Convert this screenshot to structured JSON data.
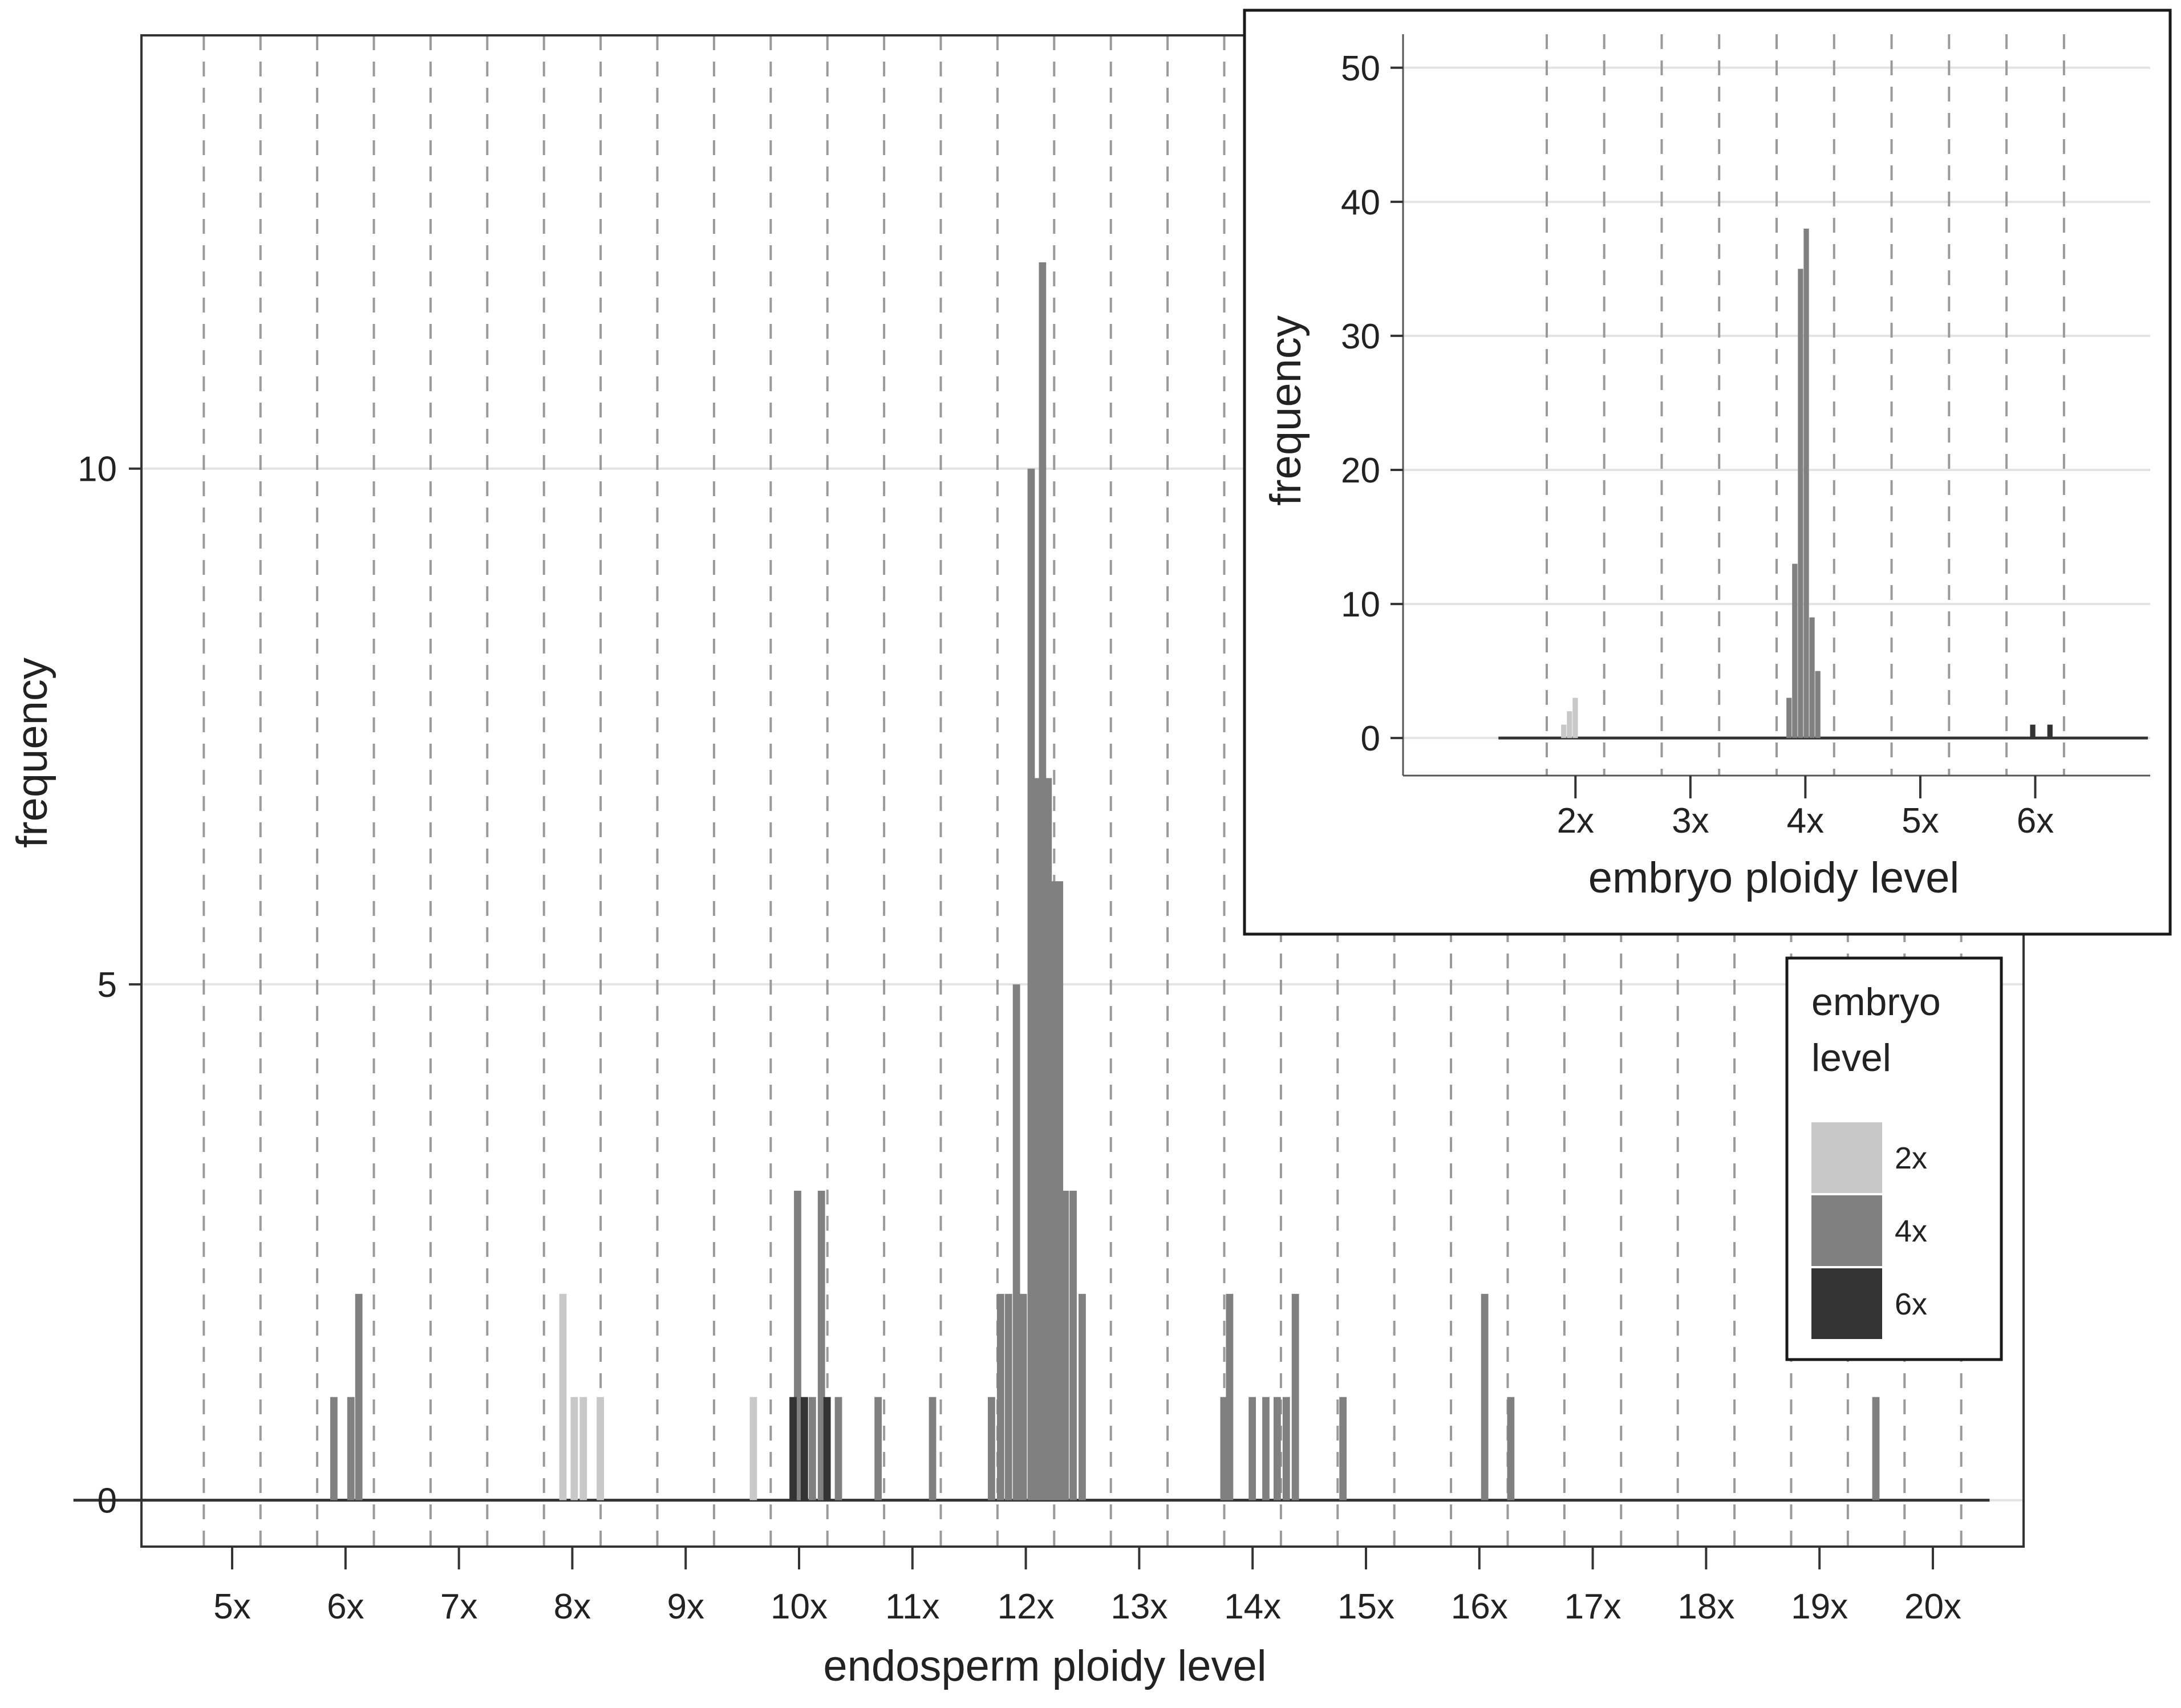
{
  "colors": {
    "level_2x": "#c8c8c8",
    "level_4x": "#808080",
    "level_6x": "#333333",
    "grid_vertical": "#9a9a9a",
    "grid_horizontal": "#e3e3e3",
    "frame": "#1a1a1a"
  },
  "chart_data": [
    {
      "type": "bar",
      "xlabel": "endosperm ploidy level",
      "ylabel": "frequency",
      "xlim": [
        4.2,
        20.8
      ],
      "ylim": [
        -0.45,
        14.2
      ],
      "x_ticks": [
        5,
        6,
        7,
        8,
        9,
        10,
        11,
        12,
        13,
        14,
        15,
        16,
        17,
        18,
        19,
        20
      ],
      "x_tick_labels": [
        "5x",
        "6x",
        "7x",
        "8x",
        "9x",
        "10x",
        "11x",
        "12x",
        "13x",
        "14x",
        "15x",
        "16x",
        "17x",
        "18x",
        "19x",
        "20x"
      ],
      "y_ticks": [
        0,
        5,
        10
      ],
      "y_tick_labels": [
        "0",
        "5",
        "10"
      ],
      "dashed_vertical_gridlines": [
        4.75,
        5.25,
        5.75,
        6.25,
        6.75,
        7.25,
        7.75,
        8.25,
        8.75,
        9.25,
        9.75,
        10.25,
        10.75,
        11.25,
        11.75,
        12.25,
        12.75,
        13.25,
        13.75,
        14.25,
        14.75,
        15.25,
        15.75,
        16.25,
        16.75,
        17.25,
        17.75,
        18.25,
        18.75,
        19.25,
        19.75,
        20.25
      ],
      "baseline_range": [
        3.6,
        20.5
      ],
      "bin_width": 0.07,
      "series": [
        {
          "name": "2x",
          "color_key": "level_2x",
          "bins": [
            {
              "x": 7.92,
              "count": 2
            },
            {
              "x": 8.02,
              "count": 1
            },
            {
              "x": 8.1,
              "count": 1
            },
            {
              "x": 8.25,
              "count": 1
            },
            {
              "x": 9.6,
              "count": 1
            }
          ]
        },
        {
          "name": "4x",
          "color_key": "level_4x",
          "bins": [
            {
              "x": 5.9,
              "count": 1
            },
            {
              "x": 6.05,
              "count": 1
            },
            {
              "x": 6.12,
              "count": 2
            },
            {
              "x": 9.99,
              "count": 3
            },
            {
              "x": 10.12,
              "count": 1
            },
            {
              "x": 10.2,
              "count": 3
            },
            {
              "x": 10.35,
              "count": 1
            },
            {
              "x": 10.7,
              "count": 1
            },
            {
              "x": 11.18,
              "count": 1
            },
            {
              "x": 11.7,
              "count": 1
            },
            {
              "x": 11.78,
              "count": 2
            },
            {
              "x": 11.85,
              "count": 2
            },
            {
              "x": 11.92,
              "count": 5
            },
            {
              "x": 11.98,
              "count": 2
            },
            {
              "x": 12.05,
              "count": 10
            },
            {
              "x": 12.1,
              "count": 7
            },
            {
              "x": 12.15,
              "count": 12
            },
            {
              "x": 12.2,
              "count": 7
            },
            {
              "x": 12.25,
              "count": 6
            },
            {
              "x": 12.3,
              "count": 6
            },
            {
              "x": 12.35,
              "count": 3
            },
            {
              "x": 12.42,
              "count": 3
            },
            {
              "x": 12.5,
              "count": 2
            },
            {
              "x": 13.75,
              "count": 1
            },
            {
              "x": 13.8,
              "count": 2
            },
            {
              "x": 14.0,
              "count": 1
            },
            {
              "x": 14.12,
              "count": 1
            },
            {
              "x": 14.22,
              "count": 1
            },
            {
              "x": 14.3,
              "count": 1
            },
            {
              "x": 14.38,
              "count": 2
            },
            {
              "x": 14.8,
              "count": 1
            },
            {
              "x": 16.05,
              "count": 2
            },
            {
              "x": 16.28,
              "count": 1
            },
            {
              "x": 19.5,
              "count": 1
            }
          ]
        },
        {
          "name": "6x",
          "color_key": "level_6x",
          "bins": [
            {
              "x": 9.95,
              "count": 1
            },
            {
              "x": 10.05,
              "count": 1
            },
            {
              "x": 10.25,
              "count": 1
            }
          ]
        }
      ],
      "legend": {
        "title_line1": "embryo",
        "title_line2": "level",
        "entries": [
          "2x",
          "4x",
          "6x"
        ],
        "position": "right"
      }
    },
    {
      "type": "bar",
      "position": "inset top-right",
      "xlabel": "embryo ploidy level",
      "ylabel": "frequency",
      "xlim": [
        0.5,
        7.0
      ],
      "ylim": [
        -2.8,
        52.5
      ],
      "x_ticks": [
        2,
        3,
        4,
        5,
        6
      ],
      "x_tick_labels": [
        "2x",
        "3x",
        "4x",
        "5x",
        "6x"
      ],
      "y_ticks": [
        0,
        10,
        20,
        30,
        40,
        50
      ],
      "y_tick_labels": [
        "0",
        "10",
        "20",
        "30",
        "40",
        "50"
      ],
      "dashed_vertical_gridlines": [
        1.75,
        2.25,
        2.75,
        3.25,
        3.75,
        4.25,
        4.75,
        5.25,
        5.75,
        6.25
      ],
      "baseline_range": [
        1.33,
        6.98
      ],
      "bin_width": 0.05,
      "series": [
        {
          "name": "2x",
          "color_key": "level_2x",
          "bins": [
            {
              "x": 1.9,
              "count": 1
            },
            {
              "x": 1.95,
              "count": 2
            },
            {
              "x": 2.0,
              "count": 3
            }
          ]
        },
        {
          "name": "4x",
          "color_key": "level_4x",
          "bins": [
            {
              "x": 3.86,
              "count": 3
            },
            {
              "x": 3.91,
              "count": 13
            },
            {
              "x": 3.96,
              "count": 35
            },
            {
              "x": 4.01,
              "count": 38
            },
            {
              "x": 4.06,
              "count": 9
            },
            {
              "x": 4.11,
              "count": 5
            }
          ]
        },
        {
          "name": "6x",
          "color_key": "level_6x",
          "bins": [
            {
              "x": 5.98,
              "count": 1
            },
            {
              "x": 6.13,
              "count": 1
            }
          ]
        }
      ]
    }
  ]
}
